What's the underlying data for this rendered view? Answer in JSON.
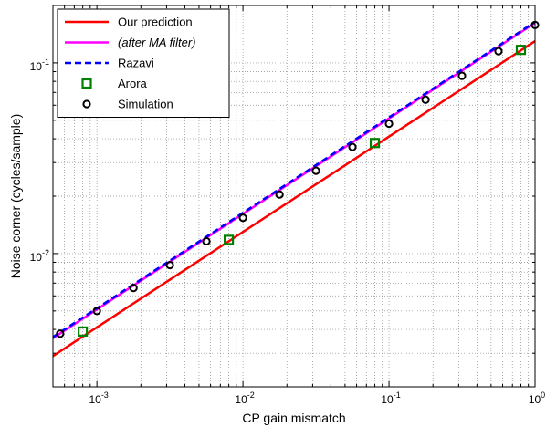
{
  "chart_data": {
    "type": "line",
    "xscale": "log",
    "yscale": "log",
    "xlim": [
      0.0005,
      1
    ],
    "ylim": [
      0.002,
      0.2
    ],
    "grid": true,
    "legend_position": "top-left",
    "xlabel": "CP gain mismatch",
    "ylabel": "Noise corner (cycles/sample)",
    "x_tick_labels": [
      {
        "base": "10",
        "exp": "-3",
        "value": 0.001
      },
      {
        "base": "10",
        "exp": "-2",
        "value": 0.01
      },
      {
        "base": "10",
        "exp": "-1",
        "value": 0.1
      },
      {
        "base": "10",
        "exp": "0",
        "value": 1
      }
    ],
    "y_tick_labels": [
      {
        "base": "10",
        "exp": "-2",
        "value": 0.01
      },
      {
        "base": "10",
        "exp": "-1",
        "value": 0.1
      }
    ],
    "series": [
      {
        "name": "Our prediction",
        "style": "line",
        "color": "#ff0000",
        "dash": "none",
        "italic": false,
        "x": [
          0.0005,
          1
        ],
        "y": [
          0.0029,
          0.13
        ]
      },
      {
        "name": "(after MA filter)",
        "style": "line",
        "color": "#ff00ff",
        "dash": "none",
        "italic": true,
        "x": [
          0.0005,
          1
        ],
        "y": [
          0.0036,
          0.162
        ]
      },
      {
        "name": "Razavi",
        "style": "line",
        "color": "#0000ff",
        "dash": "dashed",
        "italic": false,
        "x": [
          0.0005,
          1
        ],
        "y": [
          0.00365,
          0.164
        ]
      },
      {
        "name": "Arora",
        "style": "square-marker",
        "color": "#008000",
        "italic": false,
        "x": [
          0.0008,
          0.008,
          0.08,
          0.8
        ],
        "y": [
          0.0039,
          0.0118,
          0.038,
          0.117
        ]
      },
      {
        "name": "Simulation",
        "style": "circle-marker",
        "color": "#000000",
        "italic": false,
        "x": [
          0.00056,
          0.001,
          0.00178,
          0.00316,
          0.00562,
          0.01,
          0.0178,
          0.0316,
          0.0562,
          0.1,
          0.178,
          0.316,
          0.562,
          1
        ],
        "y": [
          0.0038,
          0.005,
          0.0066,
          0.0087,
          0.0116,
          0.0154,
          0.0204,
          0.0272,
          0.0362,
          0.048,
          0.0641,
          0.0855,
          0.1151,
          0.158
        ]
      }
    ]
  }
}
